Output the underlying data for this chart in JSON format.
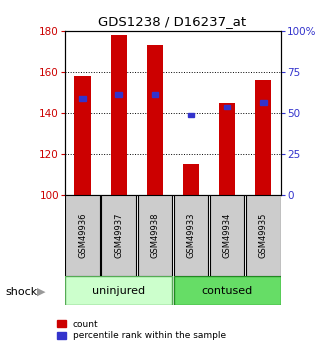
{
  "title": "GDS1238 / D16237_at",
  "samples": [
    "GSM49936",
    "GSM49937",
    "GSM49938",
    "GSM49933",
    "GSM49934",
    "GSM49935"
  ],
  "group_labels": [
    "uninjured",
    "contused"
  ],
  "bar_color": "#cc0000",
  "blue_color": "#3333cc",
  "count_values": [
    158,
    178,
    173,
    115,
    145,
    156
  ],
  "percentile_values": [
    147,
    149,
    149,
    139,
    143,
    145
  ],
  "ylim_left": [
    100,
    180
  ],
  "ylim_right": [
    0,
    100
  ],
  "yticks_left": [
    100,
    120,
    140,
    160,
    180
  ],
  "yticks_right": [
    0,
    25,
    50,
    75,
    100
  ],
  "ytick_labels_right": [
    "0",
    "25",
    "50",
    "75",
    "100%"
  ],
  "background_color": "#ffffff",
  "legend_count": "count",
  "legend_percentile": "percentile rank within the sample",
  "uninjured_color": "#ccffcc",
  "contused_color": "#66dd66",
  "sample_box_color": "#cccccc"
}
